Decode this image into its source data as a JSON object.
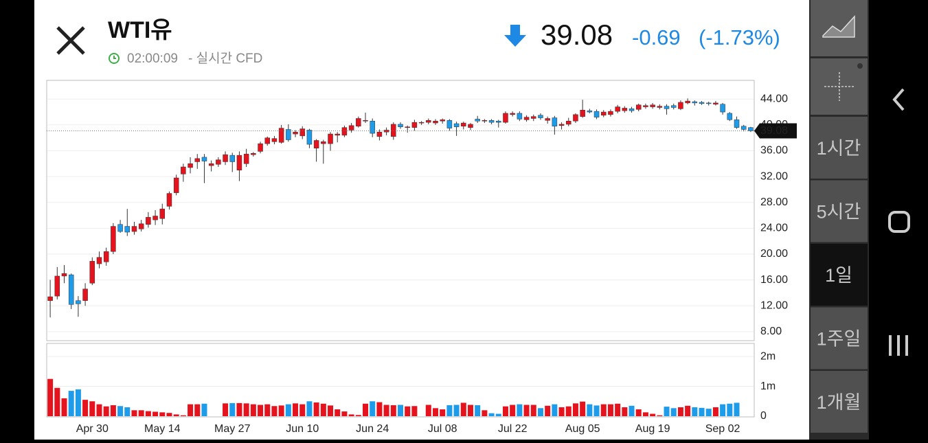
{
  "header": {
    "title": "WTI유",
    "time": "02:00:09",
    "source": "- 실시간 CFD",
    "price": "39.08",
    "change": "-0.69",
    "change_pct": "(-1.73%)"
  },
  "sidebar": {
    "buttons": [
      "1시간",
      "5시간",
      "1일",
      "1주일",
      "1개월"
    ],
    "selected": 2
  },
  "chart_data": {
    "type": "candlestick",
    "categories": [
      null,
      null,
      null,
      null,
      null,
      null,
      "Apr 30",
      null,
      null,
      null,
      null,
      null,
      null,
      null,
      null,
      null,
      "May 14",
      null,
      null,
      null,
      null,
      null,
      null,
      null,
      null,
      null,
      "May 27",
      null,
      null,
      null,
      null,
      null,
      null,
      null,
      null,
      null,
      "Jun 10",
      null,
      null,
      null,
      null,
      null,
      null,
      null,
      null,
      null,
      "Jun 24",
      null,
      null,
      null,
      null,
      null,
      null,
      null,
      null,
      null,
      "Jul 08",
      null,
      null,
      null,
      null,
      null,
      null,
      null,
      null,
      null,
      "Jul 22",
      null,
      null,
      null,
      null,
      null,
      null,
      null,
      null,
      null,
      "Aug 05",
      null,
      null,
      null,
      null,
      null,
      null,
      null,
      null,
      null,
      "Aug 19",
      null,
      null,
      null,
      null,
      null,
      null,
      null,
      null,
      null,
      "Sep 02",
      null,
      null,
      null,
      null
    ],
    "open": [
      12.8,
      13.5,
      16.6,
      16.8,
      12.8,
      12.8,
      15.5,
      18.5,
      18.8,
      20.4,
      24.6,
      24.3,
      23.5,
      23.9,
      24.6,
      25.3,
      25.5,
      27.4,
      29.5,
      32.4,
      33.4,
      34.3,
      35,
      33.7,
      33.9,
      34.3,
      35.3,
      33,
      34,
      35.4,
      35.9,
      37.1,
      37.4,
      37.3,
      39.3,
      38.6,
      38.3,
      39.2,
      36.4,
      37.1,
      37.1,
      38.4,
      38.4,
      39.2,
      39.8,
      40.6,
      40.6,
      38.2,
      38.9,
      38.2,
      40.1,
      39.6,
      39.6,
      40.3,
      40.4,
      40.3,
      40.6,
      40.7,
      40.2,
      39.8,
      39.6,
      40.9,
      40.6,
      40.7,
      40.6,
      40.4,
      41.6,
      41.8,
      40.8,
      41,
      41.5,
      40.7,
      41.1,
      39.9,
      40.1,
      40.6,
      41.3,
      42.2,
      42.1,
      41.5,
      41.6,
      42.1,
      42.2,
      42.5,
      42.4,
      42.8,
      42.8,
      42.7,
      42.9,
      43,
      42.5,
      43.4,
      43.6,
      43.5,
      43.4,
      43.2,
      43.2,
      41.8,
      40.8,
      39.8,
      39.6
    ],
    "high": [
      16,
      18,
      18.3,
      17,
      13.5,
      15.5,
      19.5,
      20.4,
      21,
      24.8,
      25.3,
      27,
      25,
      25.3,
      26.5,
      26.8,
      27.8,
      29.7,
      32.3,
      34,
      35,
      35.5,
      35.5,
      34.5,
      35,
      35.9,
      35.7,
      35.9,
      36.3,
      35.8,
      37.4,
      38.2,
      38.3,
      40,
      40.1,
      39.2,
      39.8,
      39.4,
      37.8,
      37.7,
      38.9,
      38.9,
      39.9,
      40.3,
      41.3,
      41.9,
      41,
      39.3,
      39.6,
      40.4,
      40.4,
      39.9,
      40.8,
      40.6,
      41,
      40.9,
      41,
      40.9,
      40.5,
      40.5,
      40.3,
      41.4,
      40.9,
      40.9,
      40.8,
      42.1,
      42.1,
      42.1,
      41.5,
      41.6,
      41.8,
      41.3,
      41.4,
      40.4,
      41.1,
      41.8,
      43.9,
      42.5,
      42.4,
      42.3,
      42.4,
      43.1,
      42.9,
      42.8,
      43.3,
      43.3,
      43.4,
      43.2,
      43.2,
      43.3,
      43.8,
      44.1,
      43.8,
      43.7,
      43.6,
      43.7,
      43.4,
      42,
      41.3,
      40,
      39.7
    ],
    "low": [
      10.2,
      13,
      15.5,
      11.5,
      10.3,
      12,
      15.2,
      17.8,
      18.2,
      20,
      23.3,
      22.8,
      23,
      23.5,
      24.1,
      24.5,
      24.6,
      26.9,
      29.1,
      31.2,
      32.5,
      33.2,
      31,
      32.8,
      33.5,
      33.8,
      32.7,
      31.3,
      33.5,
      35.1,
      35.6,
      36.8,
      37,
      37.1,
      37.4,
      38.1,
      37.8,
      36.4,
      34.3,
      34,
      36,
      37.3,
      38.1,
      38.8,
      39.6,
      40.3,
      38.1,
      37.6,
      38.4,
      37.7,
      39.4,
      38.8,
      39.1,
      40,
      40.1,
      40,
      40.2,
      39.1,
      38.3,
      39.3,
      39.2,
      40.3,
      40.3,
      40.1,
      39.6,
      40.2,
      41.3,
      40.6,
      40.5,
      40.6,
      40.8,
      40.2,
      38.5,
      39.3,
      39.8,
      40.3,
      41.1,
      41.8,
      40.9,
      41.2,
      41.3,
      41.8,
      41.9,
      41.9,
      42.1,
      42.5,
      42.5,
      42.4,
      41.6,
      42.4,
      42.3,
      43.2,
      43,
      43.1,
      43,
      43,
      41.6,
      40.6,
      39.4,
      39,
      38.9
    ],
    "close": [
      13.4,
      16.6,
      17,
      12.2,
      12.3,
      14.6,
      18.9,
      19.5,
      20.4,
      24.3,
      23.5,
      23.4,
      24.3,
      24.7,
      25.7,
      25.9,
      27,
      29.4,
      31.8,
      33.5,
      34,
      34.8,
      34.4,
      34,
      34.6,
      35.4,
      34.3,
      35.3,
      35.5,
      35.6,
      37.1,
      38,
      37.9,
      39.5,
      37.7,
      38.9,
      39.4,
      37,
      37.6,
      37.4,
      38.6,
      38.6,
      39.6,
      39.9,
      41,
      40.7,
      38.7,
      38.9,
      39.2,
      40.1,
      39.7,
      39.7,
      40.4,
      40.4,
      40.7,
      40.6,
      40.8,
      39.5,
      39.7,
      40.3,
      40.1,
      40.6,
      40.7,
      40.4,
      40.4,
      41.8,
      41.8,
      40.9,
      41.2,
      41.3,
      41.1,
      41,
      39.8,
      40.1,
      40.6,
      41.6,
      42.3,
      42,
      41.2,
      42,
      42.1,
      42.8,
      42.6,
      42.2,
      43.1,
      43,
      43.1,
      42.9,
      42.5,
      42.7,
      43.5,
      43.7,
      43.4,
      43.3,
      43.3,
      43.4,
      42,
      40.8,
      39.6,
      39.3,
      39.08
    ],
    "volume": [
      1250000,
      950000,
      600000,
      850000,
      900000,
      550000,
      500000,
      400000,
      330000,
      370000,
      340000,
      300000,
      200000,
      200000,
      170000,
      150000,
      130000,
      110000,
      60000,
      30000,
      400000,
      400000,
      420000,
      0,
      0,
      430000,
      440000,
      440000,
      430000,
      400000,
      380000,
      400000,
      340000,
      360000,
      400000,
      430000,
      400000,
      500000,
      460000,
      420000,
      360000,
      230000,
      160000,
      60000,
      40000,
      420000,
      500000,
      470000,
      380000,
      370000,
      380000,
      330000,
      340000,
      0,
      380000,
      270000,
      230000,
      370000,
      380000,
      450000,
      380000,
      370000,
      200000,
      100000,
      80000,
      330000,
      380000,
      400000,
      380000,
      380000,
      270000,
      350000,
      400000,
      300000,
      330000,
      430000,
      490000,
      400000,
      360000,
      400000,
      400000,
      420000,
      300000,
      350000,
      230000,
      130000,
      80000,
      30000,
      320000,
      270000,
      300000,
      350000,
      300000,
      280000,
      250000,
      300000,
      400000,
      420000,
      450000,
      0,
      0
    ],
    "ylim": [
      6.6,
      46.9
    ],
    "yticks": [
      {
        "value": 8,
        "label": "8.00"
      },
      {
        "value": 12,
        "label": "12.00"
      },
      {
        "value": 16,
        "label": "16.00"
      },
      {
        "value": 20,
        "label": "20.00"
      },
      {
        "value": 24,
        "label": "24.00"
      },
      {
        "value": 28,
        "label": "28.00"
      },
      {
        "value": 32,
        "label": "32.00"
      },
      {
        "value": 36,
        "label": "36.00"
      },
      {
        "value": 40,
        "label": "40.00"
      },
      {
        "value": 44,
        "label": "44.00"
      }
    ],
    "volume_ylim": [
      0,
      2440000
    ],
    "volume_ticks": [
      0,
      {
        "value": 1000000,
        "label": "1m"
      },
      {
        "value": 2000000,
        "label": "2m"
      }
    ],
    "up_color": "#e5131d",
    "down_color": "#1e9be9",
    "grid": true
  }
}
